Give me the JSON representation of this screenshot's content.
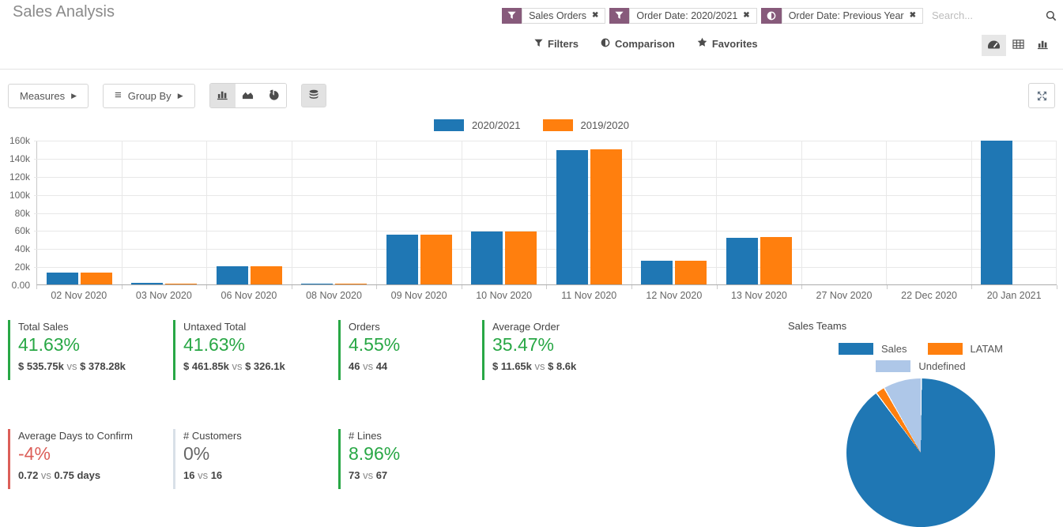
{
  "header": {
    "title": "Sales Analysis",
    "facets": [
      {
        "icon": "filter",
        "label": "Sales Orders"
      },
      {
        "icon": "filter",
        "label": "Order Date: 2020/2021"
      },
      {
        "icon": "comparison",
        "label": "Order Date: Previous Year"
      }
    ],
    "search_placeholder": "Search...",
    "menus": [
      {
        "icon": "filter",
        "label": "Filters"
      },
      {
        "icon": "comparison",
        "label": "Comparison"
      },
      {
        "icon": "star",
        "label": "Favorites"
      }
    ],
    "view_switcher": [
      {
        "name": "dashboard",
        "icon": "dashboard-icon",
        "active": true
      },
      {
        "name": "pivot",
        "icon": "pivot-table-icon",
        "active": false
      },
      {
        "name": "graph",
        "icon": "bar-chart-icon",
        "active": false
      }
    ]
  },
  "toolbar": {
    "measures_label": "Measures",
    "group_by_label": "Group By",
    "chart_type_buttons": [
      {
        "name": "bar",
        "icon": "bar-chart-icon",
        "active": true
      },
      {
        "name": "line",
        "icon": "area-chart-icon",
        "active": false
      },
      {
        "name": "pie",
        "icon": "pie-chart-icon",
        "active": false
      }
    ],
    "stacked_button": {
      "name": "stacked",
      "icon": "database-stack-icon",
      "active": true
    },
    "expand_button": {
      "name": "expand",
      "icon": "expand-arrows-icon"
    }
  },
  "chart_data": [
    {
      "type": "bar",
      "title": "",
      "categories": [
        "02 Nov 2020",
        "03 Nov 2020",
        "06 Nov 2020",
        "08 Nov 2020",
        "09 Nov 2020",
        "10 Nov 2020",
        "11 Nov 2020",
        "12 Nov 2020",
        "13 Nov 2020",
        "27 Nov 2020",
        "22 Dec 2020",
        "20 Jan 2021"
      ],
      "series": [
        {
          "name": "2020/2021",
          "color": "#1f77b4",
          "values_k": [
            13.3,
            1.7,
            20.3,
            0.9,
            55.0,
            58.5,
            149.0,
            26.0,
            52.0,
            0,
            0,
            159.0
          ]
        },
        {
          "name": "2019/2020",
          "color": "#ff7f0e",
          "values_k": [
            13.3,
            1.2,
            20.3,
            0.9,
            55.5,
            58.5,
            149.5,
            26.0,
            52.6,
            0,
            0,
            0
          ]
        }
      ],
      "xlabel": "",
      "ylabel": "",
      "values_unit": "thousands",
      "ylim_k": [
        0,
        160
      ],
      "yticks": [
        "0.00",
        "20k",
        "40k",
        "60k",
        "80k",
        "100k",
        "120k",
        "140k",
        "160k"
      ],
      "grid": true,
      "legend_position": "top"
    },
    {
      "type": "pie",
      "title": "Sales Teams",
      "labels": [
        "Sales",
        "LATAM",
        "Undefined"
      ],
      "values_pct": [
        89.7,
        2.0,
        8.3
      ],
      "colors": [
        "#1f77b4",
        "#ff7f0e",
        "#aec7e8"
      ],
      "legend_position": "top"
    }
  ],
  "kpis": [
    {
      "label": "Total Sales",
      "pct": "41.63%",
      "accent": "#28a745",
      "border": "#28a745",
      "value": "$ 535.75k",
      "vs": "vs",
      "compare": "$ 378.28k"
    },
    {
      "label": "Untaxed Total",
      "pct": "41.63%",
      "accent": "#28a745",
      "border": "#28a745",
      "value": "$ 461.85k",
      "vs": "vs",
      "compare": "$ 326.1k"
    },
    {
      "label": "Orders",
      "pct": "4.55%",
      "accent": "#28a745",
      "border": "#28a745",
      "value": "46",
      "vs": "vs",
      "compare": "44"
    },
    {
      "label": "Average Order",
      "pct": "35.47%",
      "accent": "#28a745",
      "border": "#28a745",
      "value": "$ 11.65k",
      "vs": "vs",
      "compare": "$ 8.6k"
    },
    {
      "label": "Average Days to Confirm",
      "pct": "-4%",
      "accent": "#dc5f59",
      "border": "#dc5f59",
      "value": "0.72",
      "vs": "vs",
      "compare": "0.75 days"
    },
    {
      "label": "# Customers",
      "pct": "0%",
      "accent": "#666666",
      "border": "#d9e0e8",
      "value": "16",
      "vs": "vs",
      "compare": "16"
    },
    {
      "label": "# Lines",
      "pct": "8.96%",
      "accent": "#28a745",
      "border": "#28a745",
      "value": "73",
      "vs": "vs",
      "compare": "67"
    }
  ]
}
